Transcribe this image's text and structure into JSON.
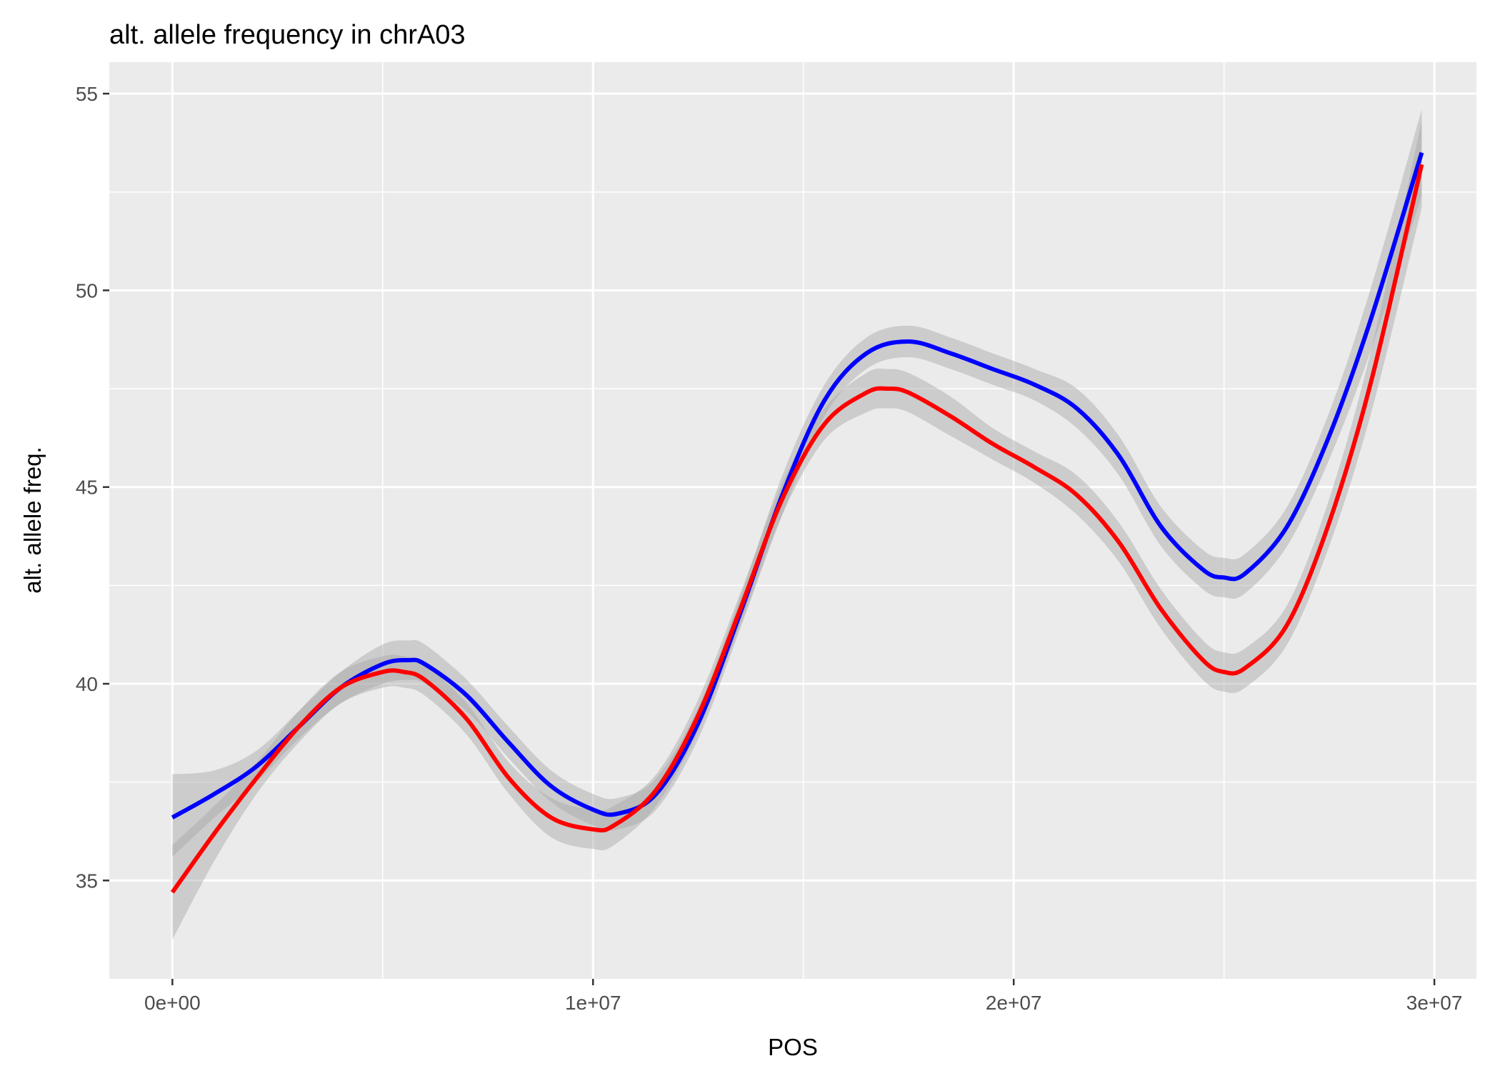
{
  "chart_data": {
    "type": "line",
    "title": "alt. allele frequency in chrA03",
    "xlabel": "POS",
    "ylabel": "alt. allele freq.",
    "xlim": [
      -1500000,
      31000000
    ],
    "ylim": [
      32.5,
      55.8
    ],
    "x_ticks": [
      0,
      10000000,
      20000000,
      30000000
    ],
    "x_tick_labels": [
      "0e+00",
      "1e+07",
      "2e+07",
      "3e+07"
    ],
    "y_ticks": [
      35,
      40,
      45,
      50,
      55
    ],
    "y_tick_labels": [
      "35",
      "40",
      "45",
      "50",
      "55"
    ],
    "grid": true,
    "legend": "none",
    "colors": {
      "panel": "#ebebeb",
      "grid": "#ffffff",
      "ribbon": "#bebebe"
    },
    "series": [
      {
        "color": "#0000ff",
        "x": [
          0,
          1000000,
          2000000,
          3000000,
          4000000,
          5000000,
          5600000,
          6000000,
          7000000,
          8000000,
          9000000,
          10000000,
          10600000,
          11500000,
          12500000,
          13500000,
          14500000,
          15500000,
          16500000,
          17500000,
          18500000,
          19500000,
          20500000,
          21500000,
          22500000,
          23500000,
          24500000,
          25000000,
          25500000,
          26500000,
          27500000,
          28500000,
          29700000
        ],
        "y": [
          36.6,
          37.2,
          37.9,
          38.9,
          39.9,
          40.5,
          40.6,
          40.5,
          39.7,
          38.5,
          37.4,
          36.8,
          36.7,
          37.2,
          39.0,
          41.8,
          44.8,
          47.2,
          48.4,
          48.7,
          48.4,
          48.0,
          47.6,
          47.0,
          45.8,
          44.0,
          42.9,
          42.7,
          42.8,
          44.0,
          46.3,
          49.3,
          53.5
        ],
        "lower": [
          35.6,
          36.6,
          37.5,
          38.6,
          39.5,
          40.0,
          40.1,
          40.0,
          39.3,
          38.1,
          37.0,
          36.4,
          36.3,
          36.8,
          38.6,
          41.4,
          44.3,
          46.8,
          48.0,
          48.3,
          48.0,
          47.6,
          47.2,
          46.5,
          45.3,
          43.5,
          42.4,
          42.2,
          42.3,
          43.5,
          45.7,
          48.5,
          52.4
        ],
        "upper": [
          37.7,
          37.8,
          38.3,
          39.3,
          40.3,
          41.0,
          41.1,
          41.0,
          40.1,
          38.9,
          37.8,
          37.2,
          37.1,
          37.6,
          39.4,
          42.2,
          45.3,
          47.6,
          48.8,
          49.1,
          48.8,
          48.4,
          48.0,
          47.5,
          46.3,
          44.5,
          43.4,
          43.2,
          43.3,
          44.5,
          46.9,
          50.1,
          54.6
        ]
      },
      {
        "color": "#ff0000",
        "x": [
          0,
          1000000,
          2000000,
          3000000,
          4000000,
          5000000,
          5500000,
          6000000,
          7000000,
          8000000,
          9000000,
          10000000,
          10500000,
          11500000,
          12500000,
          13500000,
          14500000,
          15500000,
          16500000,
          17000000,
          17500000,
          18500000,
          19500000,
          20500000,
          21500000,
          22500000,
          23500000,
          24500000,
          25000000,
          25500000,
          26500000,
          27500000,
          28500000,
          29700000
        ],
        "y": [
          34.7,
          36.2,
          37.6,
          38.9,
          39.9,
          40.3,
          40.3,
          40.1,
          39.1,
          37.6,
          36.6,
          36.3,
          36.4,
          37.3,
          39.2,
          41.9,
          44.7,
          46.6,
          47.4,
          47.5,
          47.4,
          46.8,
          46.1,
          45.5,
          44.8,
          43.6,
          41.9,
          40.6,
          40.3,
          40.4,
          41.5,
          44.1,
          47.7,
          53.2
        ],
        "lower": [
          33.5,
          35.5,
          37.2,
          38.5,
          39.5,
          39.9,
          39.9,
          39.7,
          38.7,
          37.2,
          36.1,
          35.8,
          35.9,
          36.9,
          38.8,
          41.5,
          44.3,
          46.2,
          46.9,
          47.0,
          46.9,
          46.3,
          45.7,
          45.1,
          44.3,
          43.1,
          41.4,
          40.1,
          39.8,
          39.9,
          41.0,
          43.5,
          46.9,
          52.1
        ],
        "upper": [
          35.9,
          36.9,
          38.0,
          39.3,
          40.3,
          40.7,
          40.7,
          40.5,
          39.5,
          38.0,
          37.1,
          36.8,
          36.9,
          37.7,
          39.6,
          42.3,
          45.1,
          47.0,
          47.9,
          48.0,
          47.9,
          47.3,
          46.5,
          45.9,
          45.3,
          44.1,
          42.4,
          41.1,
          40.8,
          40.9,
          42.0,
          44.7,
          48.5,
          54.3
        ]
      }
    ]
  }
}
